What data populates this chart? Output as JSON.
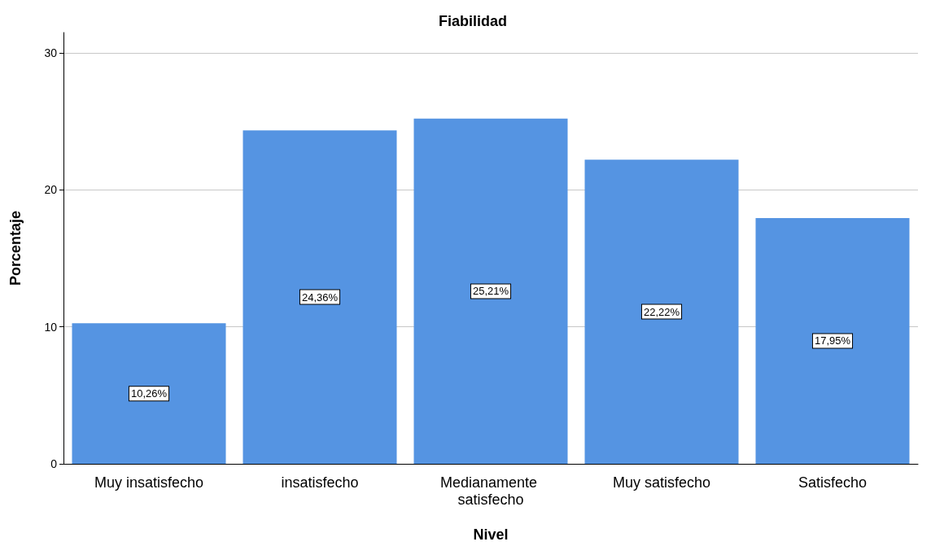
{
  "chart_data": {
    "type": "bar",
    "title": "Fiabilidad",
    "xlabel": "Nivel",
    "ylabel": "Porcentaje",
    "categories": [
      "Muy insatisfecho",
      "insatisfecho",
      "Medianamente satisfecho",
      "Muy satisfecho",
      "Satisfecho"
    ],
    "values": [
      10.26,
      24.36,
      25.21,
      22.22,
      17.95
    ],
    "value_labels": [
      "10,26%",
      "24,36%",
      "25,21%",
      "22,22%",
      "17,95%"
    ],
    "color": "#5594e2",
    "ylim": [
      0,
      31.5
    ],
    "yticks": [
      0,
      10,
      20,
      30
    ],
    "grid": "y"
  }
}
